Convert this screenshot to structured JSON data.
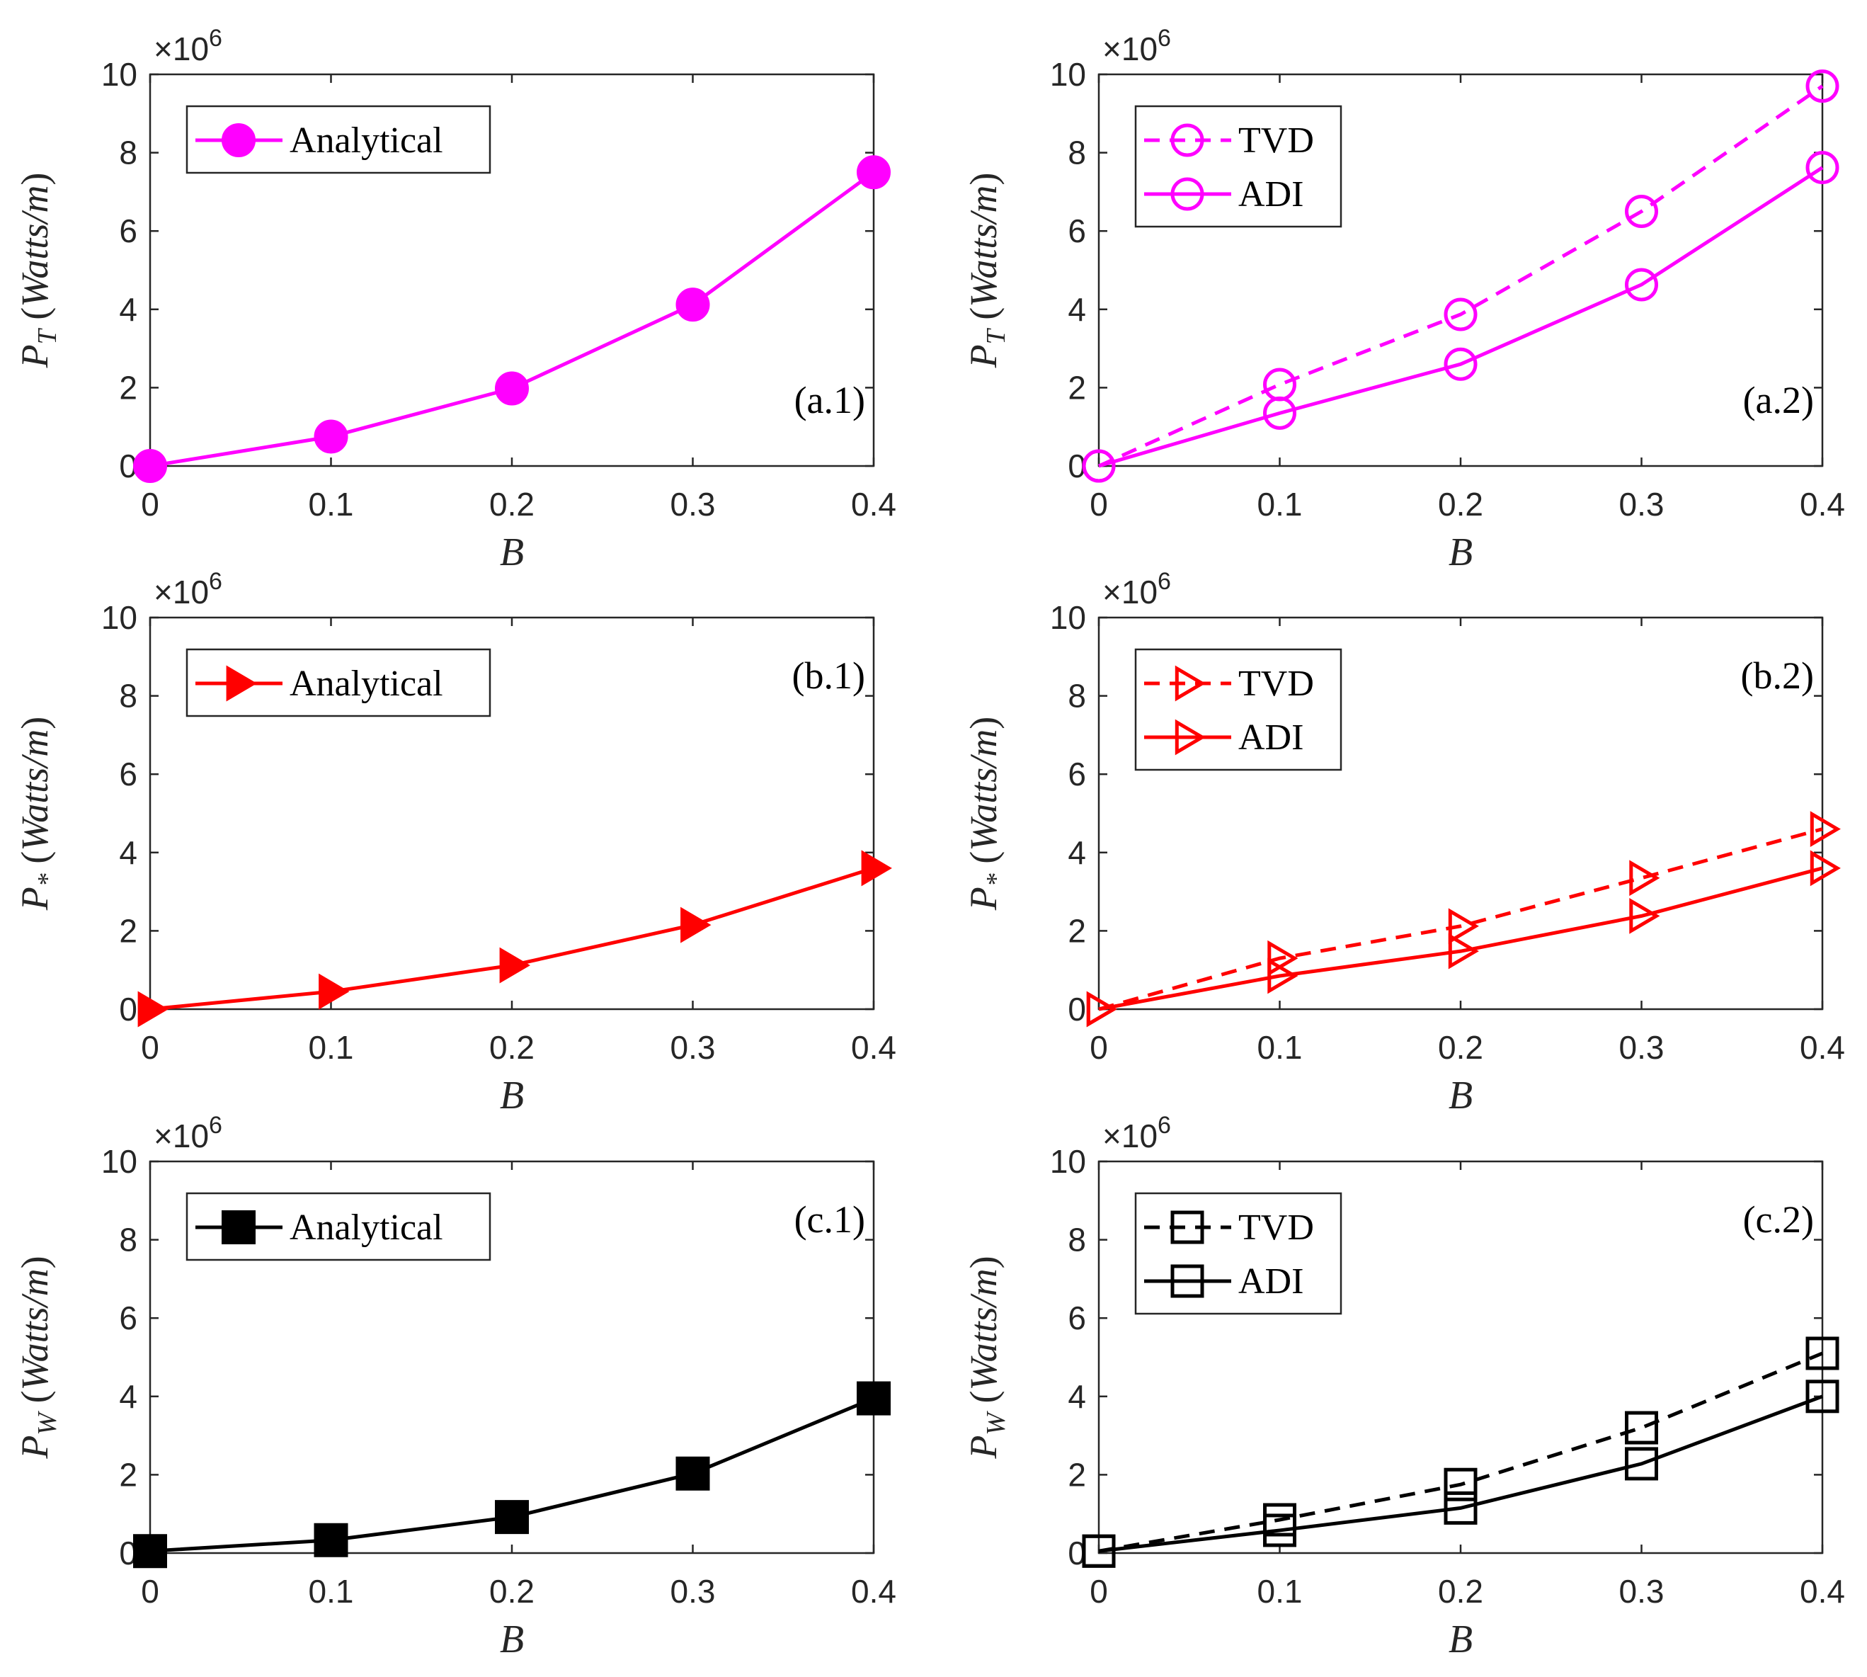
{
  "figure": {
    "panels": [
      {
        "id": "a1",
        "panel_label": "(a.1)",
        "label_pos": "bottom-right",
        "ylabel": {
          "main": "P",
          "sub": "T",
          "unit": "Watts/m"
        },
        "xlabel": "B",
        "multiplier": "×10^6",
        "legend": [
          {
            "name": "Analytical",
            "style": "solid",
            "marker": "circle",
            "filled": true
          }
        ],
        "color": "#ff00ff",
        "chart_data": {
          "type": "line",
          "x": [
            0,
            0.1,
            0.2,
            0.3,
            0.4
          ],
          "xlim": [
            0,
            0.4
          ],
          "ylim": [
            0,
            10
          ],
          "xticks": [
            "0",
            "0.1",
            "0.2",
            "0.3",
            "0.4"
          ],
          "yticks": [
            "0",
            "2",
            "4",
            "6",
            "8",
            "10"
          ],
          "series": [
            {
              "name": "Analytical",
              "values": [
                0,
                0.75,
                1.98,
                4.12,
                7.5
              ]
            }
          ]
        }
      },
      {
        "id": "a2",
        "panel_label": "(a.2)",
        "label_pos": "bottom-right",
        "ylabel": {
          "main": "P",
          "sub": "T",
          "unit": "Watts/m"
        },
        "xlabel": "B",
        "multiplier": "×10^6",
        "legend": [
          {
            "name": "TVD",
            "style": "dashed",
            "marker": "circle",
            "filled": false
          },
          {
            "name": "ADI",
            "style": "solid",
            "marker": "circle",
            "filled": false
          }
        ],
        "color": "#ff00ff",
        "chart_data": {
          "type": "line",
          "x": [
            0,
            0.1,
            0.2,
            0.3,
            0.4
          ],
          "xlim": [
            0,
            0.4
          ],
          "ylim": [
            0,
            10
          ],
          "xticks": [
            "0",
            "0.1",
            "0.2",
            "0.3",
            "0.4"
          ],
          "yticks": [
            "0",
            "2",
            "4",
            "6",
            "8",
            "10"
          ],
          "series": [
            {
              "name": "TVD",
              "values": [
                0,
                2.08,
                3.87,
                6.5,
                9.7
              ]
            },
            {
              "name": "ADI",
              "values": [
                0,
                1.35,
                2.6,
                4.63,
                7.62
              ]
            }
          ]
        }
      },
      {
        "id": "b1",
        "panel_label": "(b.1)",
        "label_pos": "top-right",
        "ylabel": {
          "main": "P",
          "sub": "*",
          "unit": "Watts/m"
        },
        "xlabel": "B",
        "multiplier": "×10^6",
        "legend": [
          {
            "name": "Analytical",
            "style": "solid",
            "marker": "triangle-right",
            "filled": true
          }
        ],
        "color": "#ff0000",
        "chart_data": {
          "type": "line",
          "x": [
            0,
            0.1,
            0.2,
            0.3,
            0.4
          ],
          "xlim": [
            0,
            0.4
          ],
          "ylim": [
            0,
            10
          ],
          "xticks": [
            "0",
            "0.1",
            "0.2",
            "0.3",
            "0.4"
          ],
          "yticks": [
            "0",
            "2",
            "4",
            "6",
            "8",
            "10"
          ],
          "series": [
            {
              "name": "Analytical",
              "values": [
                0,
                0.45,
                1.12,
                2.15,
                3.6
              ]
            }
          ]
        }
      },
      {
        "id": "b2",
        "panel_label": "(b.2)",
        "label_pos": "top-right",
        "ylabel": {
          "main": "P",
          "sub": "*",
          "unit": "Watts/m"
        },
        "xlabel": "B",
        "multiplier": "×10^6",
        "legend": [
          {
            "name": "TVD",
            "style": "dashed",
            "marker": "triangle-right",
            "filled": false
          },
          {
            "name": "ADI",
            "style": "solid",
            "marker": "triangle-right",
            "filled": false
          }
        ],
        "color": "#ff0000",
        "chart_data": {
          "type": "line",
          "x": [
            0,
            0.1,
            0.2,
            0.3,
            0.4
          ],
          "xlim": [
            0,
            0.4
          ],
          "ylim": [
            0,
            10
          ],
          "xticks": [
            "0",
            "0.1",
            "0.2",
            "0.3",
            "0.4"
          ],
          "yticks": [
            "0",
            "2",
            "4",
            "6",
            "8",
            "10"
          ],
          "series": [
            {
              "name": "TVD",
              "values": [
                0,
                1.3,
                2.12,
                3.35,
                4.6
              ]
            },
            {
              "name": "ADI",
              "values": [
                0,
                0.85,
                1.48,
                2.38,
                3.6
              ]
            }
          ]
        }
      },
      {
        "id": "c1",
        "panel_label": "(c.1)",
        "label_pos": "top-right",
        "ylabel": {
          "main": "P",
          "sub": "W",
          "unit": "Watts/m"
        },
        "xlabel": "B",
        "multiplier": "×10^6",
        "legend": [
          {
            "name": "Analytical",
            "style": "solid",
            "marker": "square",
            "filled": true
          }
        ],
        "color": "#000000",
        "chart_data": {
          "type": "line",
          "x": [
            0,
            0.1,
            0.2,
            0.3,
            0.4
          ],
          "xlim": [
            0,
            0.4
          ],
          "ylim": [
            0,
            10
          ],
          "xticks": [
            "0",
            "0.1",
            "0.2",
            "0.3",
            "0.4"
          ],
          "yticks": [
            "0",
            "2",
            "4",
            "6",
            "8",
            "10"
          ],
          "series": [
            {
              "name": "Analytical",
              "values": [
                0.05,
                0.33,
                0.92,
                2.03,
                3.95
              ]
            }
          ]
        }
      },
      {
        "id": "c2",
        "panel_label": "(c.2)",
        "label_pos": "top-right",
        "ylabel": {
          "main": "P",
          "sub": "W",
          "unit": "Watts/m"
        },
        "xlabel": "B",
        "multiplier": "×10^6",
        "legend": [
          {
            "name": "TVD",
            "style": "dashed",
            "marker": "square",
            "filled": false
          },
          {
            "name": "ADI",
            "style": "solid",
            "marker": "square",
            "filled": false
          }
        ],
        "color": "#000000",
        "chart_data": {
          "type": "line",
          "x": [
            0,
            0.1,
            0.2,
            0.3,
            0.4
          ],
          "xlim": [
            0,
            0.4
          ],
          "ylim": [
            0,
            10
          ],
          "xticks": [
            "0",
            "0.1",
            "0.2",
            "0.3",
            "0.4"
          ],
          "yticks": [
            "0",
            "2",
            "4",
            "6",
            "8",
            "10"
          ],
          "series": [
            {
              "name": "TVD",
              "values": [
                0.05,
                0.85,
                1.75,
                3.2,
                5.1
              ]
            },
            {
              "name": "ADI",
              "values": [
                0.05,
                0.58,
                1.15,
                2.28,
                4.0
              ]
            }
          ]
        }
      }
    ]
  }
}
